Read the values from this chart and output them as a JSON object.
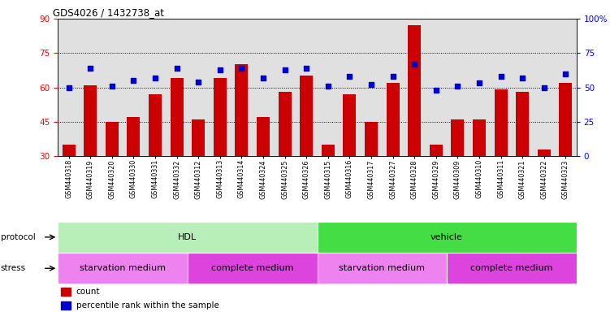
{
  "title": "GDS4026 / 1432738_at",
  "samples": [
    "GSM440318",
    "GSM440319",
    "GSM440320",
    "GSM440330",
    "GSM440331",
    "GSM440332",
    "GSM440312",
    "GSM440313",
    "GSM440314",
    "GSM440324",
    "GSM440325",
    "GSM440326",
    "GSM440315",
    "GSM440316",
    "GSM440317",
    "GSM440327",
    "GSM440328",
    "GSM440329",
    "GSM440309",
    "GSM440310",
    "GSM440311",
    "GSM440321",
    "GSM440322",
    "GSM440323"
  ],
  "bar_values": [
    35,
    61,
    45,
    47,
    57,
    64,
    46,
    64,
    70,
    47,
    58,
    65,
    35,
    57,
    45,
    62,
    87,
    35,
    46,
    46,
    59,
    58,
    33,
    62
  ],
  "dot_values": [
    50,
    64,
    51,
    55,
    57,
    64,
    54,
    63,
    64,
    57,
    63,
    64,
    51,
    58,
    52,
    58,
    67,
    48,
    51,
    53,
    58,
    57,
    50,
    60
  ],
  "ylim_left": [
    30,
    90
  ],
  "ylim_right": [
    0,
    100
  ],
  "yticks_left": [
    30,
    45,
    60,
    75,
    90
  ],
  "yticks_right": [
    0,
    25,
    50,
    75,
    100
  ],
  "ytick_labels_right": [
    "0",
    "25",
    "50",
    "75",
    "100%"
  ],
  "hlines": [
    45,
    60,
    75
  ],
  "bar_color": "#CC0000",
  "dot_color": "#0000CC",
  "bg_color": "#E0E0E0",
  "protocol_groups": [
    {
      "label": "HDL",
      "start": 0,
      "end": 12,
      "color": "#B8EEB8"
    },
    {
      "label": "vehicle",
      "start": 12,
      "end": 24,
      "color": "#44DD44"
    }
  ],
  "stress_groups": [
    {
      "label": "starvation medium",
      "start": 0,
      "end": 6,
      "color": "#EE82EE"
    },
    {
      "label": "complete medium",
      "start": 6,
      "end": 12,
      "color": "#DD44DD"
    },
    {
      "label": "starvation medium",
      "start": 12,
      "end": 18,
      "color": "#EE82EE"
    },
    {
      "label": "complete medium",
      "start": 18,
      "end": 24,
      "color": "#DD44DD"
    }
  ]
}
